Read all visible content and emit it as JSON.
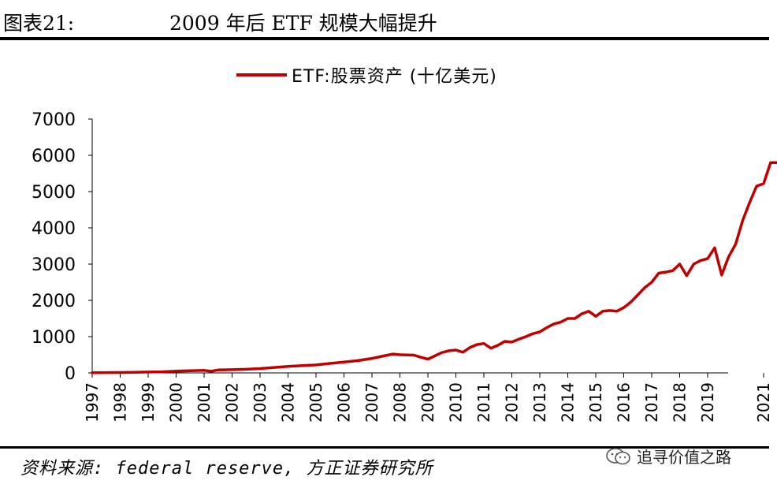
{
  "header": {
    "figure_number": "图表21:",
    "title": "2009 年后 ETF 规模大幅提升"
  },
  "source_note": "资料来源: federal reserve, 方正证券研究所",
  "watermark": {
    "text": "追寻价值之路",
    "icon": "wechat-icon"
  },
  "colors": {
    "series": "#c00000",
    "axis": "#000000",
    "rule": "#000000"
  },
  "chart_data": {
    "type": "line",
    "title": "",
    "xlabel": "",
    "ylabel": "",
    "ylim": [
      0,
      7000
    ],
    "xlim": [
      1997,
      2021.9
    ],
    "grid": false,
    "legend_position": "top-center",
    "y_ticks": [
      "0",
      "1000",
      "2000",
      "3000",
      "4000",
      "5000",
      "6000",
      "7000"
    ],
    "x_ticks": [
      "1997",
      "1998",
      "1999",
      "2000",
      "2001",
      "2002",
      "2003",
      "2004",
      "2005",
      "2006",
      "2007",
      "2008",
      "2009",
      "2010",
      "2011",
      "2012",
      "2013",
      "2014",
      "2015",
      "2016",
      "2017",
      "2018",
      "2019",
      "2021"
    ],
    "series": [
      {
        "name": "ETF:股票资产 (十亿美元)",
        "x": [
          1997.0,
          1997.5,
          1998.0,
          1998.5,
          1999.0,
          1999.5,
          2000.0,
          2000.5,
          2001.0,
          2001.25,
          2001.5,
          2002.0,
          2002.5,
          2003.0,
          2003.5,
          2004.0,
          2004.5,
          2005.0,
          2005.5,
          2006.0,
          2006.5,
          2007.0,
          2007.5,
          2007.75,
          2008.0,
          2008.5,
          2008.75,
          2009.0,
          2009.25,
          2009.5,
          2009.75,
          2010.0,
          2010.25,
          2010.5,
          2010.75,
          2011.0,
          2011.25,
          2011.5,
          2011.75,
          2012.0,
          2012.25,
          2012.5,
          2012.75,
          2013.0,
          2013.25,
          2013.5,
          2013.75,
          2014.0,
          2014.25,
          2014.5,
          2014.75,
          2015.0,
          2015.25,
          2015.5,
          2015.75,
          2016.0,
          2016.25,
          2016.5,
          2016.75,
          2017.0,
          2017.25,
          2017.5,
          2017.75,
          2018.0,
          2018.25,
          2018.5,
          2018.75,
          2019.0,
          2019.25,
          2019.5,
          2019.75,
          2020.0,
          2020.25,
          2020.5,
          2020.75,
          2021.0,
          2021.25,
          2021.5,
          2021.75
        ],
        "values": [
          5,
          8,
          10,
          15,
          25,
          30,
          50,
          60,
          70,
          45,
          80,
          90,
          100,
          120,
          150,
          180,
          200,
          220,
          260,
          300,
          340,
          400,
          480,
          520,
          500,
          490,
          430,
          380,
          470,
          560,
          610,
          630,
          570,
          700,
          780,
          810,
          680,
          760,
          870,
          850,
          930,
          1000,
          1080,
          1130,
          1250,
          1350,
          1400,
          1500,
          1500,
          1630,
          1700,
          1560,
          1700,
          1720,
          1700,
          1800,
          1950,
          2150,
          2350,
          2500,
          2750,
          2780,
          2820,
          3000,
          2680,
          3000,
          3100,
          3150,
          3450,
          2700,
          3200,
          3550,
          4200,
          4700,
          5150,
          5220,
          5800,
          5800,
          5800
        ]
      }
    ]
  }
}
